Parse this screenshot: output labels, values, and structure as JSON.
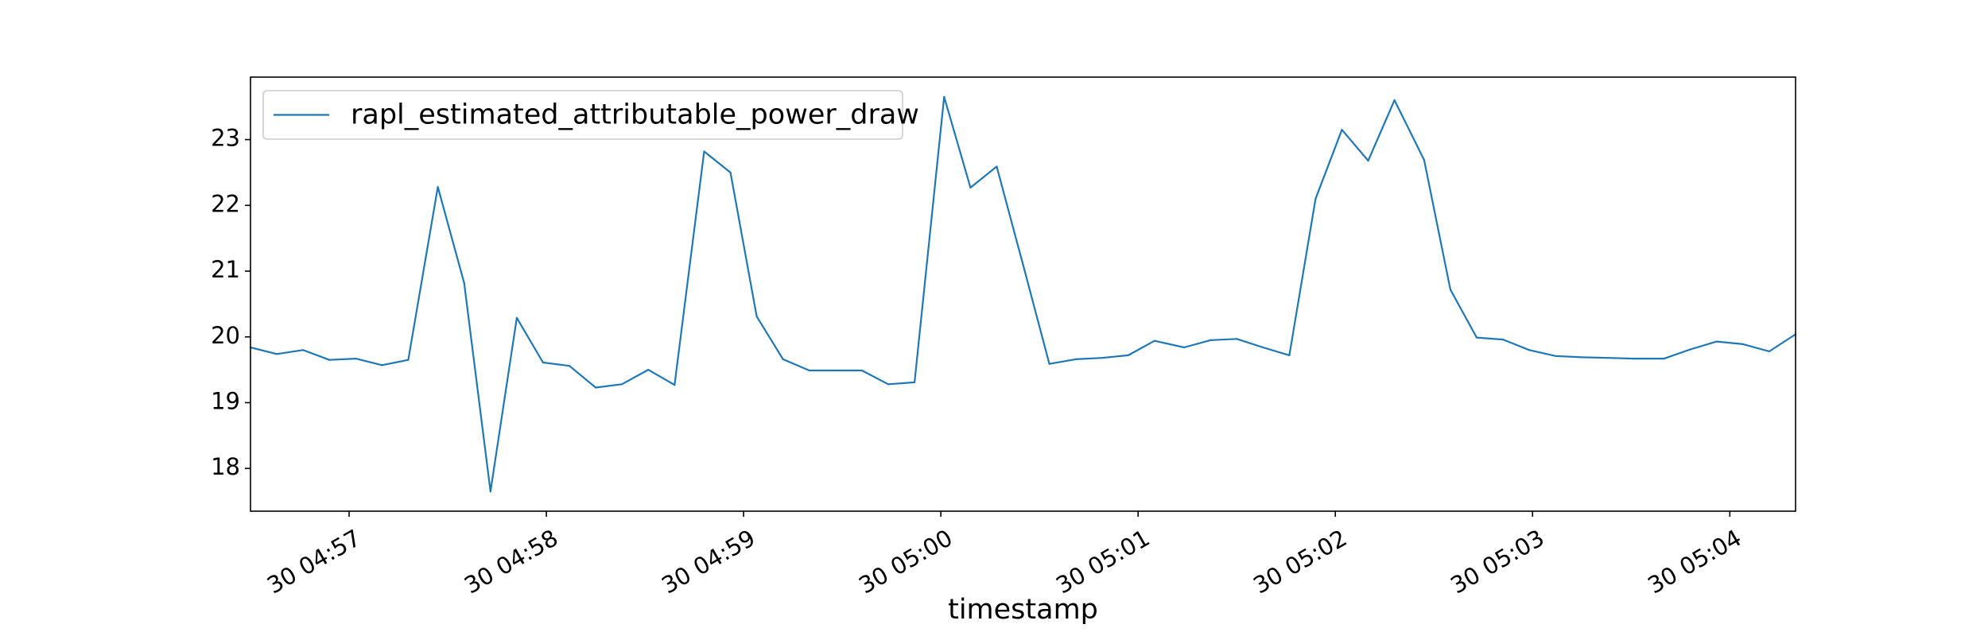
{
  "chart_data": {
    "type": "line",
    "title": "",
    "xlabel": "timestamp",
    "ylabel": "",
    "series": [
      {
        "name": "rapl_estimated_attributable_power_draw",
        "color": "#1f77b4",
        "points": [
          [
            "04:56:30",
            19.84
          ],
          [
            "04:56:38",
            19.74
          ],
          [
            "04:56:46",
            19.8
          ],
          [
            "04:56:54",
            19.65
          ],
          [
            "04:57:02",
            19.67
          ],
          [
            "04:57:10",
            19.57
          ],
          [
            "04:57:18",
            19.65
          ],
          [
            "04:57:27",
            22.28
          ],
          [
            "04:57:35",
            20.82
          ],
          [
            "04:57:43",
            17.65
          ],
          [
            "04:57:51",
            20.29
          ],
          [
            "04:57:59",
            19.61
          ],
          [
            "04:58:07",
            19.56
          ],
          [
            "04:58:15",
            19.23
          ],
          [
            "04:58:23",
            19.28
          ],
          [
            "04:58:31",
            19.5
          ],
          [
            "04:58:39",
            19.27
          ],
          [
            "04:58:48",
            22.82
          ],
          [
            "04:58:56",
            22.5
          ],
          [
            "04:59:04",
            20.31
          ],
          [
            "04:59:12",
            19.66
          ],
          [
            "04:59:20",
            19.49
          ],
          [
            "04:59:28",
            19.49
          ],
          [
            "04:59:36",
            19.49
          ],
          [
            "04:59:44",
            19.28
          ],
          [
            "04:59:52",
            19.31
          ],
          [
            "05:00:01",
            23.65
          ],
          [
            "05:00:09",
            22.27
          ],
          [
            "05:00:17",
            22.59
          ],
          [
            "05:00:25",
            21.1
          ],
          [
            "05:00:33",
            19.59
          ],
          [
            "05:00:41",
            19.66
          ],
          [
            "05:00:49",
            19.68
          ],
          [
            "05:00:57",
            19.72
          ],
          [
            "05:01:05",
            19.94
          ],
          [
            "05:01:14",
            19.84
          ],
          [
            "05:01:22",
            19.95
          ],
          [
            "05:01:30",
            19.97
          ],
          [
            "05:01:38",
            19.84
          ],
          [
            "05:01:46",
            19.72
          ],
          [
            "05:01:54",
            22.1
          ],
          [
            "05:02:02",
            23.15
          ],
          [
            "05:02:10",
            22.68
          ],
          [
            "05:02:18",
            23.6
          ],
          [
            "05:02:27",
            22.69
          ],
          [
            "05:02:35",
            20.72
          ],
          [
            "05:02:43",
            19.99
          ],
          [
            "05:02:51",
            19.96
          ],
          [
            "05:02:59",
            19.8
          ],
          [
            "05:03:07",
            19.71
          ],
          [
            "05:03:15",
            19.69
          ],
          [
            "05:03:23",
            19.68
          ],
          [
            "05:03:31",
            19.67
          ],
          [
            "05:03:40",
            19.67
          ],
          [
            "05:03:48",
            19.81
          ],
          [
            "05:03:56",
            19.93
          ],
          [
            "05:04:04",
            19.89
          ],
          [
            "05:04:12",
            19.78
          ],
          [
            "05:04:20",
            20.04
          ]
        ]
      }
    ],
    "xlim": [
      "04:56:30",
      "05:04:20"
    ],
    "ylim": [
      17.35,
      23.95
    ],
    "xticks": [
      {
        "t": "04:57:00",
        "label": "30 04:57"
      },
      {
        "t": "04:58:00",
        "label": "30 04:58"
      },
      {
        "t": "04:59:00",
        "label": "30 04:59"
      },
      {
        "t": "05:00:00",
        "label": "30 05:00"
      },
      {
        "t": "05:01:00",
        "label": "30 05:01"
      },
      {
        "t": "05:02:00",
        "label": "30 05:02"
      },
      {
        "t": "05:03:00",
        "label": "30 05:03"
      },
      {
        "t": "05:04:00",
        "label": "30 05:04"
      }
    ],
    "yticks": [
      18,
      19,
      20,
      21,
      22,
      23
    ],
    "grid": false,
    "legend_position": "top-left"
  }
}
